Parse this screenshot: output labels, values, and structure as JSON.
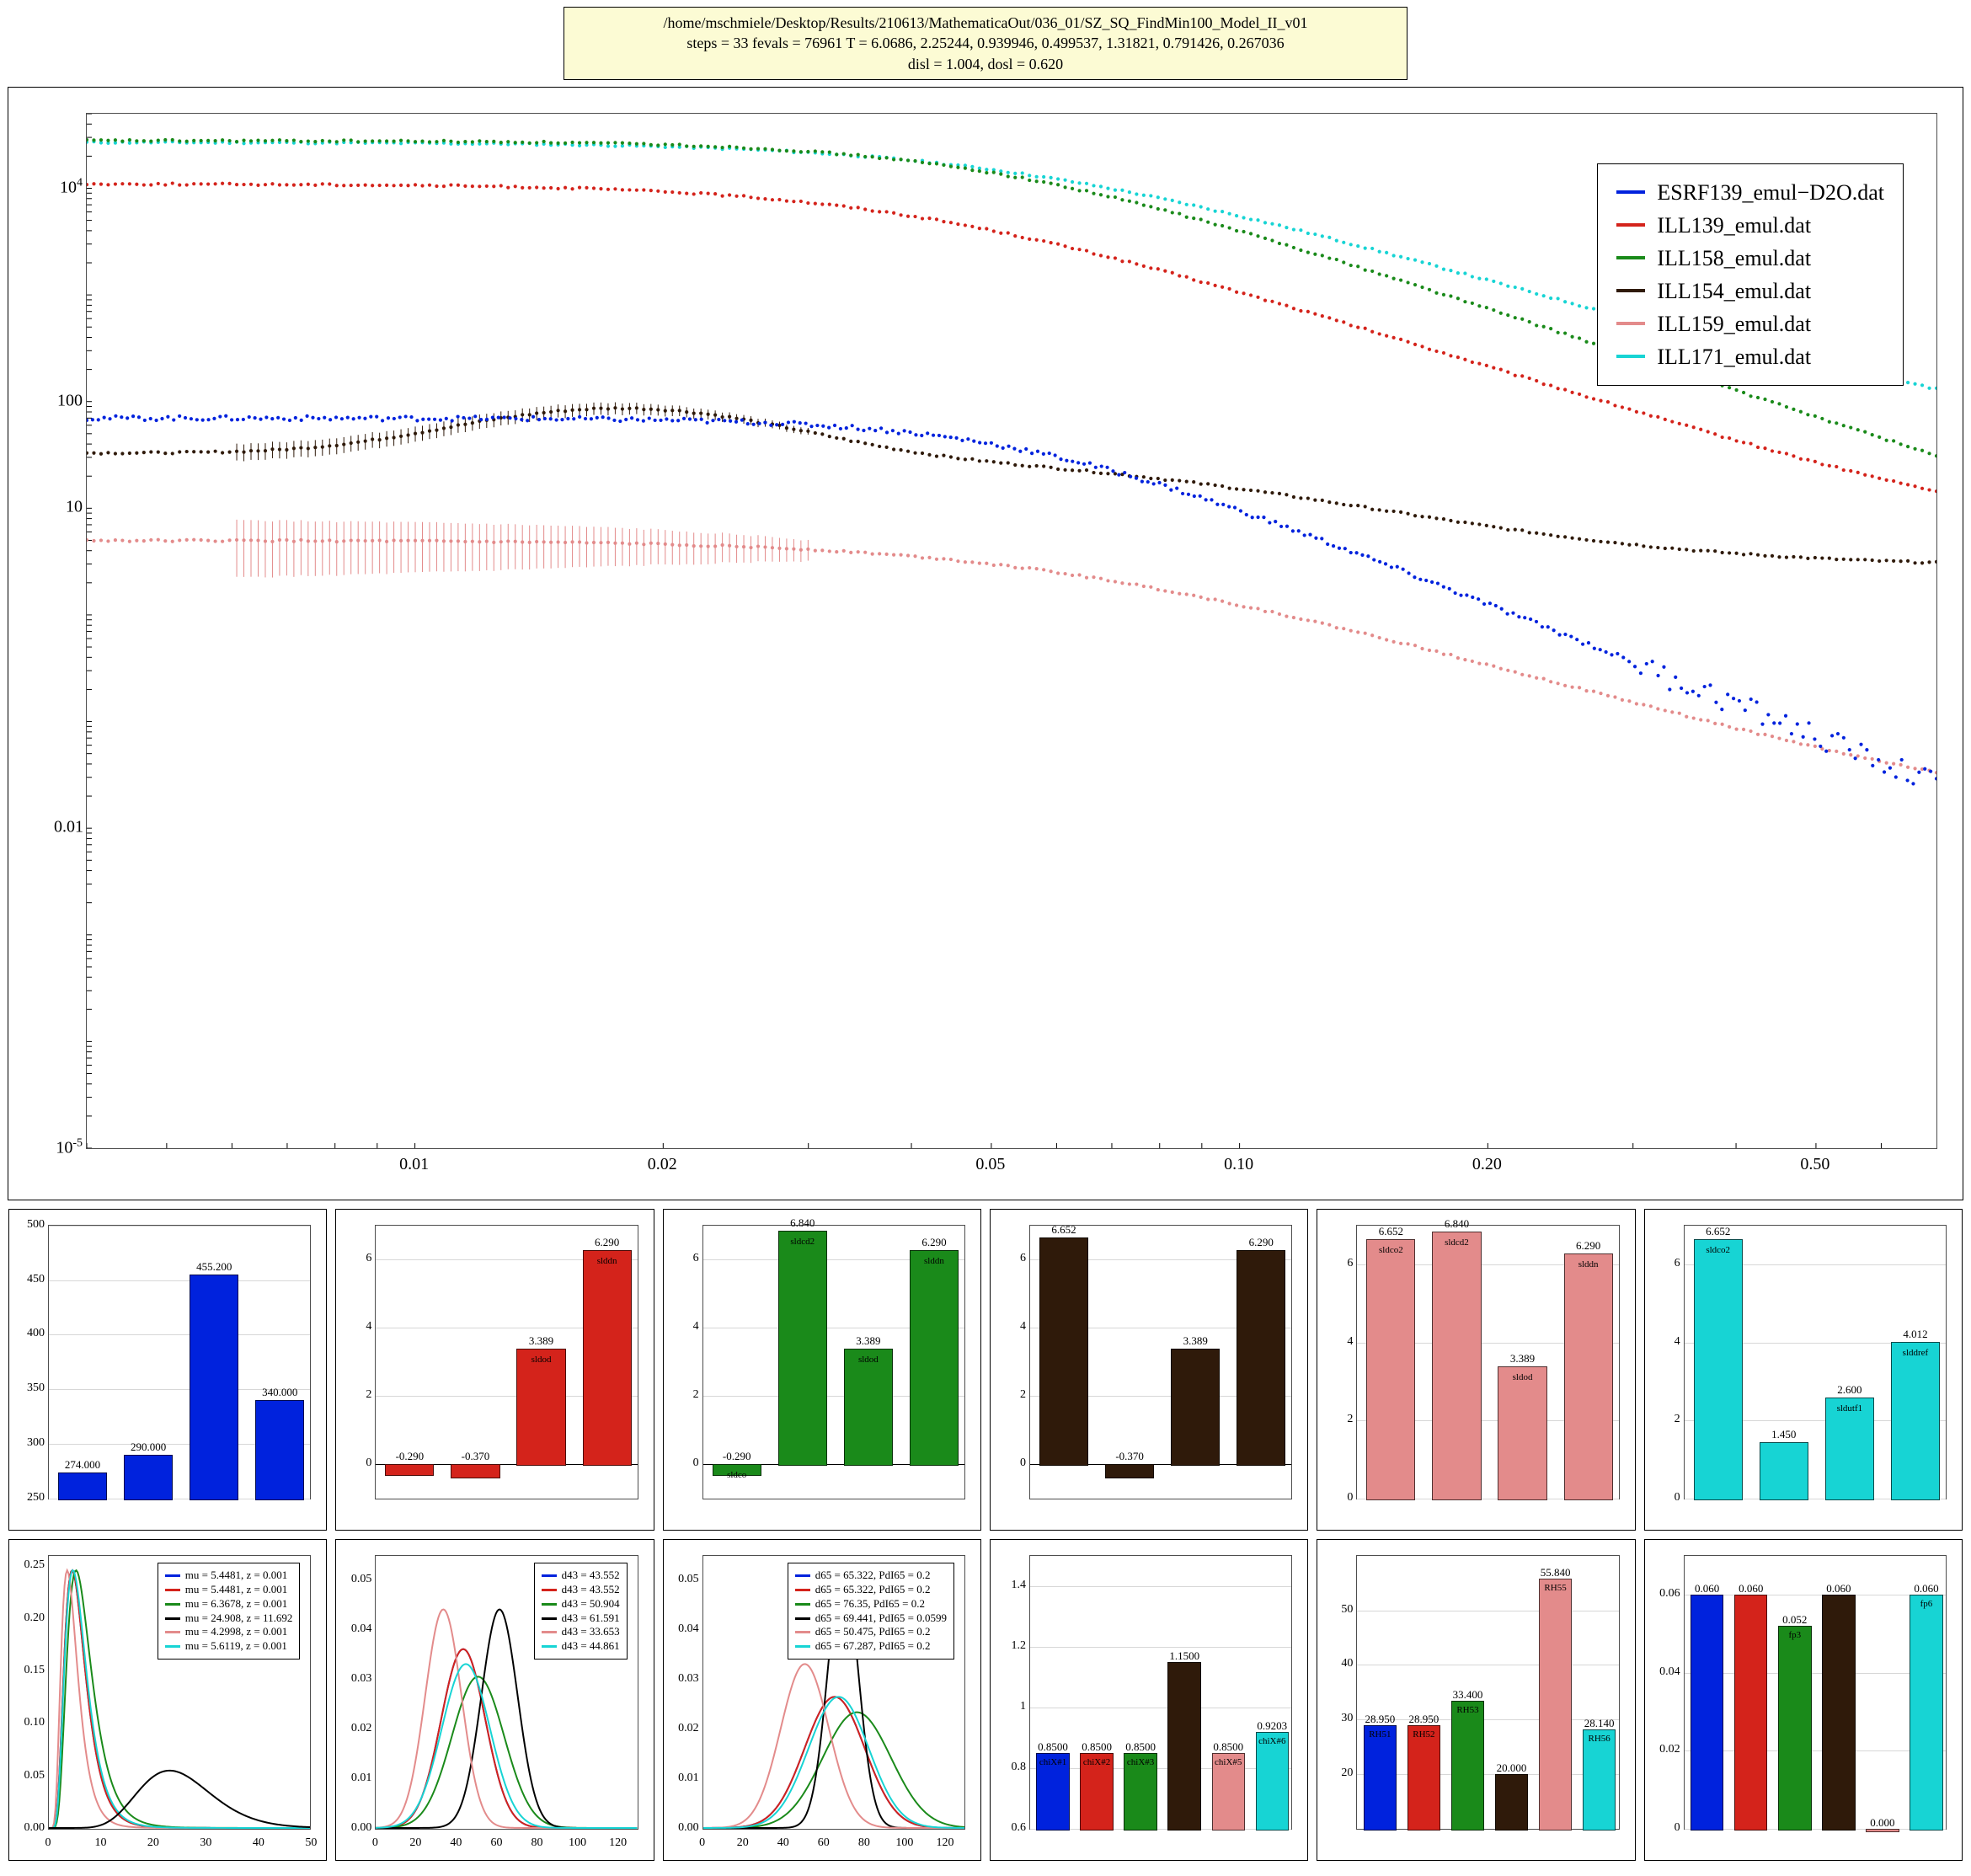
{
  "title": {
    "line1": "/home/mschmiele/Desktop/Results/210613/MathematicaOut/036_01/SZ_SQ_FindMin100_Model_II_v01",
    "line2": "steps = 33    fevals = 76961    T = 6.0686, 2.25244, 0.939946, 0.499537, 1.31821, 0.791426, 0.267036",
    "line3": "disl = 1.004, dosl = 0.620"
  },
  "colors": {
    "blue": "#0022dd",
    "red": "#d4231b",
    "green": "#1a8a1a",
    "brown": "#2f1a0a",
    "pink": "#e38b8b",
    "cyan": "#17d4d4",
    "black": "#000000",
    "panelBorder": "#4d4d4d",
    "titlebg": "#fcfbd4"
  },
  "main": {
    "type": "scatter-loglog",
    "xlim": [
      0.004,
      0.7
    ],
    "ylim": [
      1e-05,
      50000.0
    ],
    "xticks": [
      {
        "v": 0.01,
        "l": "0.01"
      },
      {
        "v": 0.02,
        "l": "0.02"
      },
      {
        "v": 0.05,
        "l": "0.05"
      },
      {
        "v": 0.1,
        "l": "0.10"
      },
      {
        "v": 0.2,
        "l": "0.20"
      },
      {
        "v": 0.5,
        "l": "0.50"
      }
    ],
    "yticks": [
      {
        "v": 1e-05,
        "l": "10<sup>-5</sup>"
      },
      {
        "v": 0.01,
        "l": "0.01"
      },
      {
        "v": 10,
        "l": "10"
      },
      {
        "v": 100.0,
        "l": "100"
      },
      {
        "v": 10000.0,
        "l": "10<sup>4</sup>"
      }
    ],
    "legend": [
      {
        "color": "#0022dd",
        "label": "ESRF139_emul−D2O.dat"
      },
      {
        "color": "#d4231b",
        "label": "ILL139_emul.dat"
      },
      {
        "color": "#1a8a1a",
        "label": "ILL158_emul.dat"
      },
      {
        "color": "#2f1a0a",
        "label": "ILL154_emul.dat"
      },
      {
        "color": "#e38b8b",
        "label": "ILL159_emul.dat"
      },
      {
        "color": "#17d4d4",
        "label": "ILL171_emul.dat"
      }
    ],
    "curves": [
      {
        "color": "#17d4d4",
        "nPts": 260,
        "y0": 27000,
        "plateau": 55,
        "q50": 0.055,
        "slope": 2.3,
        "noise": 0.02,
        "errBars": false
      },
      {
        "color": "#1a8a1a",
        "nPts": 260,
        "y0": 28000,
        "plateau": 2.1,
        "q50": 0.05,
        "slope": 2.6,
        "noise": 0.02,
        "errBars": false
      },
      {
        "color": "#d4231b",
        "nPts": 260,
        "y0": 11000,
        "plateau": 4.5,
        "q50": 0.04,
        "slope": 2.45,
        "noise": 0.02,
        "errBars": false
      },
      {
        "color": "#2f1a0a",
        "nPts": 260,
        "y0": 33,
        "plateau": 2.8,
        "q50": 0.085,
        "slope": 2.2,
        "noise": 0.02,
        "hump": {
          "amp": 1.7,
          "q": 0.018,
          "w": 0.55
        },
        "errBars": true,
        "errRegion": [
          0.006,
          0.03
        ],
        "errScale": 0.18
      },
      {
        "color": "#e38b8b",
        "nPts": 260,
        "y0": 5.0,
        "plateau": 0.011,
        "q50": 0.06,
        "slope": 2.2,
        "noise": 0.02,
        "errBars": true,
        "errRegion": [
          0.006,
          0.03
        ],
        "errScale": 0.55
      },
      {
        "color": "#0022dd",
        "nPts": 320,
        "y0": 70,
        "plateau": 4.5e-05,
        "q50": 0.055,
        "slope": 3.1,
        "noise": 0.05,
        "errBars": false,
        "extraNoiseAfter": 0.3,
        "extraNoise": 0.25
      }
    ]
  },
  "barPanels": [
    {
      "color": "#0022dd",
      "ylim": [
        250,
        500
      ],
      "yticks": [
        250,
        300,
        350,
        400,
        450,
        500
      ],
      "bars": [
        {
          "label": "",
          "value": 274.0,
          "text": "274.000",
          "in": ""
        },
        {
          "label": "",
          "value": 290.0,
          "text": "290.000",
          "in": ""
        },
        {
          "label": "",
          "value": 455.2,
          "text": "455.200",
          "in": ""
        },
        {
          "label": "",
          "value": 340.0,
          "text": "340.000",
          "in": ""
        }
      ]
    },
    {
      "color": "#d4231b",
      "ylim": [
        -1,
        7
      ],
      "yticks": [
        0,
        2,
        4,
        6
      ],
      "bars": [
        {
          "label": "",
          "value": -0.29,
          "text": "-0.290",
          "in": ""
        },
        {
          "label": "",
          "value": -0.37,
          "text": "-0.370",
          "in": ""
        },
        {
          "label": "",
          "value": 3.389,
          "text": "3.389",
          "in": "sldod"
        },
        {
          "label": "",
          "value": 6.29,
          "text": "6.290",
          "in": "slddn"
        }
      ]
    },
    {
      "color": "#1a8a1a",
      "ylim": [
        -1,
        7
      ],
      "yticks": [
        0,
        2,
        4,
        6
      ],
      "bars": [
        {
          "label": "",
          "value": -0.29,
          "text": "-0.290",
          "in": "sldco"
        },
        {
          "label": "",
          "value": 6.84,
          "text": "6.840",
          "in": "sldcd2"
        },
        {
          "label": "",
          "value": 3.389,
          "text": "3.389",
          "in": "sldod"
        },
        {
          "label": "",
          "value": 6.29,
          "text": "6.290",
          "in": "slddn"
        }
      ]
    },
    {
      "color": "#2f1a0a",
      "ylim": [
        -1,
        7
      ],
      "yticks": [
        0,
        2,
        4,
        6
      ],
      "bars": [
        {
          "label": "",
          "value": 6.652,
          "text": "6.652",
          "in": ""
        },
        {
          "label": "",
          "value": -0.37,
          "text": "-0.370",
          "in": ""
        },
        {
          "label": "",
          "value": 3.389,
          "text": "3.389",
          "in": ""
        },
        {
          "label": "",
          "value": 6.29,
          "text": "6.290",
          "in": ""
        }
      ]
    },
    {
      "color": "#e38b8b",
      "ylim": [
        0,
        7
      ],
      "yticks": [
        0,
        2,
        4,
        6
      ],
      "bars": [
        {
          "label": "",
          "value": 6.652,
          "text": "6.652",
          "in": "sldco2"
        },
        {
          "label": "",
          "value": 6.84,
          "text": "6.840",
          "in": "sldcd2"
        },
        {
          "label": "",
          "value": 3.389,
          "text": "3.389",
          "in": "sldod"
        },
        {
          "label": "",
          "value": 6.29,
          "text": "6.290",
          "in": "slddn"
        }
      ]
    },
    {
      "color": "#17d4d4",
      "ylim": [
        0,
        7
      ],
      "yticks": [
        0,
        2,
        4,
        6
      ],
      "bars": [
        {
          "label": "",
          "value": 6.652,
          "text": "6.652",
          "in": "sldco2"
        },
        {
          "label": "",
          "value": 1.45,
          "text": "1.450",
          "in": ""
        },
        {
          "label": "",
          "value": 2.6,
          "text": "2.600",
          "in": "sldutf1"
        },
        {
          "label": "",
          "value": 4.012,
          "text": "4.012",
          "in": "slddref"
        }
      ]
    }
  ],
  "distPanels": [
    {
      "type": "curves",
      "xlim": [
        0,
        50
      ],
      "ylim": [
        0,
        0.26
      ],
      "yticks": [
        0.0,
        0.05,
        0.1,
        0.15,
        0.2,
        0.25
      ],
      "xticks": [
        0,
        10,
        20,
        30,
        40,
        50
      ],
      "legend": [
        {
          "c": "#0022dd",
          "t": "mu = 5.4481, z = 0.001"
        },
        {
          "c": "#d4231b",
          "t": "mu = 5.4481, z = 0.001"
        },
        {
          "c": "#1a8a1a",
          "t": "mu = 6.3678, z = 0.001"
        },
        {
          "c": "#000000",
          "t": "mu = 24.908, z = 11.692"
        },
        {
          "c": "#e38b8b",
          "t": "mu = 4.2998, z = 0.001"
        },
        {
          "c": "#17d4d4",
          "t": "mu = 5.6119, z = 0.001"
        }
      ],
      "curves_lognorm": [
        {
          "c": "#0022dd",
          "mu": 5.4481,
          "s": 0.45,
          "amp": 1
        },
        {
          "c": "#d4231b",
          "mu": 5.4481,
          "s": 0.45,
          "amp": 1
        },
        {
          "c": "#1a8a1a",
          "mu": 6.3678,
          "s": 0.45,
          "amp": 1
        },
        {
          "c": "#e38b8b",
          "mu": 4.2998,
          "s": 0.45,
          "amp": 1
        },
        {
          "c": "#17d4d4",
          "mu": 5.6119,
          "s": 0.45,
          "amp": 1
        }
      ],
      "gamma": {
        "c": "#000000",
        "k": 12,
        "theta": 2.1,
        "scale": 0.055
      }
    },
    {
      "type": "curves",
      "xlim": [
        0,
        130
      ],
      "ylim": [
        0,
        0.055
      ],
      "yticks": [
        0.0,
        0.01,
        0.02,
        0.03,
        0.04,
        0.05
      ],
      "xticks": [
        0,
        20,
        40,
        60,
        80,
        100,
        120
      ],
      "legend": [
        {
          "c": "#0022dd",
          "t": "d43 = 43.552"
        },
        {
          "c": "#d4231b",
          "t": "d43 = 43.552"
        },
        {
          "c": "#1a8a1a",
          "t": "d43 = 50.904"
        },
        {
          "c": "#000000",
          "t": "d43 = 61.591"
        },
        {
          "c": "#e38b8b",
          "t": "d43 = 33.653"
        },
        {
          "c": "#17d4d4",
          "t": "d43 = 44.861"
        }
      ],
      "gauss": [
        {
          "c": "#0022dd",
          "mu": 43.552,
          "sig": 11
        },
        {
          "c": "#d4231b",
          "mu": 43.552,
          "sig": 11
        },
        {
          "c": "#1a8a1a",
          "mu": 50.904,
          "sig": 13
        },
        {
          "c": "#000000",
          "mu": 61.591,
          "sig": 9
        },
        {
          "c": "#e38b8b",
          "mu": 33.653,
          "sig": 9
        },
        {
          "c": "#17d4d4",
          "mu": 44.861,
          "sig": 12
        }
      ]
    },
    {
      "type": "curves",
      "xlim": [
        0,
        130
      ],
      "ylim": [
        0,
        0.055
      ],
      "yticks": [
        0.0,
        0.01,
        0.02,
        0.03,
        0.04,
        0.05
      ],
      "xticks": [
        0,
        20,
        40,
        60,
        80,
        100,
        120
      ],
      "legend": [
        {
          "c": "#0022dd",
          "t": "d65 = 65.322, PdI65 = 0.2"
        },
        {
          "c": "#d4231b",
          "t": "d65 = 65.322, PdI65 = 0.2"
        },
        {
          "c": "#1a8a1a",
          "t": "d65 = 76.35, PdI65 = 0.2"
        },
        {
          "c": "#000000",
          "t": "d65 = 69.441, PdI65 = 0.0599"
        },
        {
          "c": "#e38b8b",
          "t": "d65 = 50.475, PdI65 = 0.2"
        },
        {
          "c": "#17d4d4",
          "t": "d65 = 67.287, PdI65 = 0.2"
        }
      ],
      "gauss": [
        {
          "c": "#0022dd",
          "mu": 65.322,
          "sig": 15
        },
        {
          "c": "#d4231b",
          "mu": 65.322,
          "sig": 15
        },
        {
          "c": "#1a8a1a",
          "mu": 76.35,
          "sig": 17
        },
        {
          "c": "#000000",
          "mu": 69.441,
          "sig": 7.5
        },
        {
          "c": "#e38b8b",
          "mu": 50.475,
          "sig": 12
        },
        {
          "c": "#17d4d4",
          "mu": 67.287,
          "sig": 15
        }
      ]
    },
    {
      "type": "bars",
      "ylim": [
        0.6,
        1.5
      ],
      "yticks": [
        0.6,
        0.8,
        1.0,
        1.2,
        1.4
      ],
      "bars": [
        {
          "c": "#0022dd",
          "v": 0.85,
          "t": "0.8500",
          "in": "chiX#1"
        },
        {
          "c": "#d4231b",
          "v": 0.85,
          "t": "0.8500",
          "in": "chiX#2"
        },
        {
          "c": "#1a8a1a",
          "v": 0.85,
          "t": "0.8500",
          "in": "chiX#3"
        },
        {
          "c": "#2f1a0a",
          "v": 1.15,
          "t": "1.1500",
          "in": ""
        },
        {
          "c": "#e38b8b",
          "v": 0.85,
          "t": "0.8500",
          "in": "chiX#5"
        },
        {
          "c": "#17d4d4",
          "v": 0.9203,
          "t": "0.9203",
          "in": "chiX#6"
        }
      ]
    },
    {
      "type": "bars",
      "ylim": [
        10,
        60
      ],
      "yticks": [
        20,
        30,
        40,
        50
      ],
      "bars": [
        {
          "c": "#0022dd",
          "v": 28.95,
          "t": "28.950",
          "in": "RH51"
        },
        {
          "c": "#d4231b",
          "v": 28.95,
          "t": "28.950",
          "in": "RH52"
        },
        {
          "c": "#1a8a1a",
          "v": 33.4,
          "t": "33.400",
          "in": "RH53"
        },
        {
          "c": "#2f1a0a",
          "v": 20.0,
          "t": "20.000",
          "in": ""
        },
        {
          "c": "#e38b8b",
          "v": 55.84,
          "t": "55.840",
          "in": "RH55"
        },
        {
          "c": "#17d4d4",
          "v": 28.14,
          "t": "28.140",
          "in": "RH56"
        }
      ]
    },
    {
      "type": "bars",
      "ylim": [
        0.0,
        0.07
      ],
      "yticks": [
        0.0,
        0.02,
        0.04,
        0.06
      ],
      "bars": [
        {
          "c": "#0022dd",
          "v": 0.06,
          "t": "0.060",
          "in": ""
        },
        {
          "c": "#d4231b",
          "v": 0.06,
          "t": "0.060",
          "in": ""
        },
        {
          "c": "#1a8a1a",
          "v": 0.052,
          "t": "0.052",
          "in": "fp3"
        },
        {
          "c": "#2f1a0a",
          "v": 0.06,
          "t": "0.060",
          "in": ""
        },
        {
          "c": "#e38b8b",
          "v": 0.0,
          "t": "0.000",
          "in": ""
        },
        {
          "c": "#17d4d4",
          "v": 0.06,
          "t": "0.060",
          "in": "fp6"
        }
      ]
    }
  ]
}
